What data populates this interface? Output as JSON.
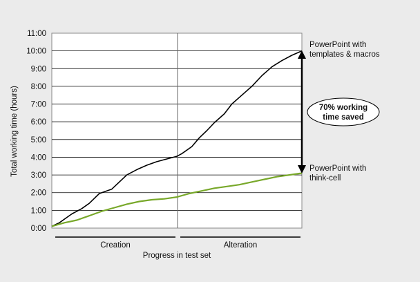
{
  "chart_data": {
    "type": "line",
    "ylabel": "Total working time (hours)",
    "xlabel": "Progress in test set",
    "x_phases": [
      {
        "label": "Creation",
        "start": 0,
        "end": 0.5
      },
      {
        "label": "Alteration",
        "start": 0.5,
        "end": 1
      }
    ],
    "ylim": [
      0,
      11
    ],
    "yticks": [
      "0:00",
      "1:00",
      "2:00",
      "3:00",
      "4:00",
      "5:00",
      "6:00",
      "7:00",
      "8:00",
      "9:00",
      "10:00",
      "11:00"
    ],
    "grid": true,
    "series": [
      {
        "name": "PowerPoint with templates & macros",
        "color": "#000000",
        "points": [
          [
            0,
            0.1
          ],
          [
            0.03,
            0.3
          ],
          [
            0.06,
            0.6
          ],
          [
            0.08,
            0.8
          ],
          [
            0.12,
            1.1
          ],
          [
            0.15,
            1.4
          ],
          [
            0.19,
            1.95
          ],
          [
            0.24,
            2.2
          ],
          [
            0.27,
            2.6
          ],
          [
            0.3,
            3.0
          ],
          [
            0.34,
            3.3
          ],
          [
            0.38,
            3.55
          ],
          [
            0.42,
            3.75
          ],
          [
            0.46,
            3.9
          ],
          [
            0.5,
            4.05
          ],
          [
            0.52,
            4.2
          ],
          [
            0.56,
            4.6
          ],
          [
            0.59,
            5.1
          ],
          [
            0.62,
            5.5
          ],
          [
            0.65,
            5.95
          ],
          [
            0.69,
            6.45
          ],
          [
            0.72,
            7.0
          ],
          [
            0.76,
            7.5
          ],
          [
            0.8,
            8.0
          ],
          [
            0.84,
            8.6
          ],
          [
            0.88,
            9.1
          ],
          [
            0.92,
            9.45
          ],
          [
            0.96,
            9.75
          ],
          [
            1.0,
            10.0
          ]
        ]
      },
      {
        "name": "PowerPoint with think-cell",
        "color": "#78a82a",
        "points": [
          [
            0,
            0.1
          ],
          [
            0.05,
            0.3
          ],
          [
            0.1,
            0.45
          ],
          [
            0.15,
            0.7
          ],
          [
            0.2,
            0.95
          ],
          [
            0.25,
            1.15
          ],
          [
            0.3,
            1.35
          ],
          [
            0.35,
            1.5
          ],
          [
            0.4,
            1.6
          ],
          [
            0.45,
            1.65
          ],
          [
            0.5,
            1.75
          ],
          [
            0.55,
            1.95
          ],
          [
            0.6,
            2.1
          ],
          [
            0.65,
            2.25
          ],
          [
            0.7,
            2.35
          ],
          [
            0.75,
            2.45
          ],
          [
            0.8,
            2.6
          ],
          [
            0.85,
            2.75
          ],
          [
            0.9,
            2.9
          ],
          [
            0.95,
            3.0
          ],
          [
            1.0,
            3.1
          ]
        ]
      }
    ],
    "annotation": {
      "text": [
        "70% working",
        "time saved"
      ],
      "from": 3.1,
      "to": 10.0
    }
  }
}
